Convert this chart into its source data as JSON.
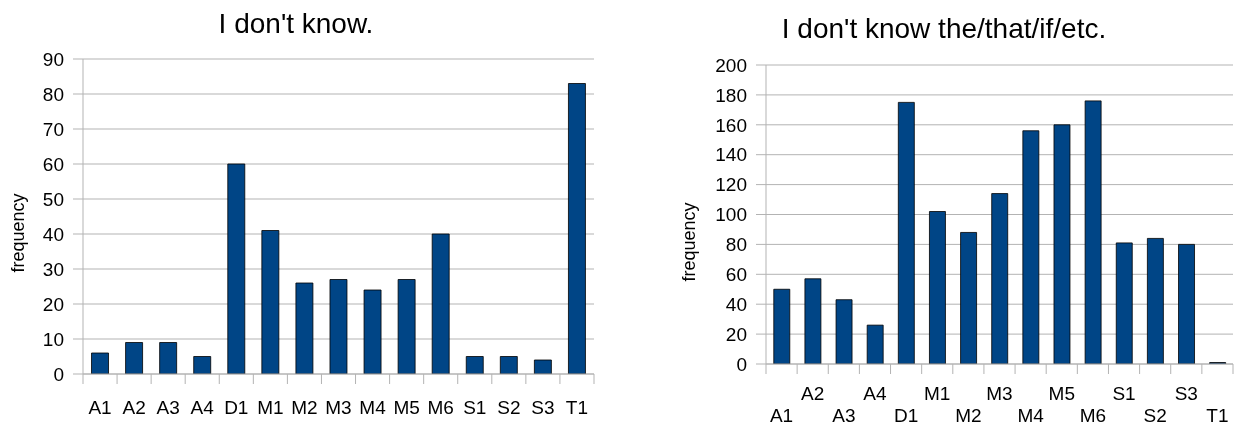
{
  "chart_data": [
    {
      "type": "bar",
      "title": "I don't know.",
      "ylabel": "frequency",
      "categories": [
        "A1",
        "A2",
        "A3",
        "A4",
        "D1",
        "M1",
        "M2",
        "M3",
        "M4",
        "M5",
        "M6",
        "S1",
        "S2",
        "S3",
        "T1"
      ],
      "values": [
        6,
        9,
        9,
        5,
        60,
        41,
        26,
        27,
        24,
        27,
        40,
        5,
        5,
        4,
        83
      ],
      "color": "#004586",
      "ylim": [
        0,
        90
      ],
      "yticks": [
        0,
        10,
        20,
        30,
        40,
        50,
        60,
        70,
        80,
        90
      ],
      "grid": "y"
    },
    {
      "type": "bar",
      "title": "I don't know the/that/if/etc.",
      "ylabel": "frequency",
      "categories": [
        "A1",
        "A2",
        "A3",
        "A4",
        "D1",
        "M1",
        "M2",
        "M3",
        "M4",
        "M5",
        "M6",
        "S1",
        "S2",
        "S3",
        "T1"
      ],
      "values": [
        50,
        57,
        43,
        26,
        175,
        102,
        88,
        114,
        156,
        160,
        176,
        81,
        84,
        80,
        1
      ],
      "color": "#004586",
      "ylim": [
        0,
        200
      ],
      "yticks": [
        0,
        20,
        40,
        60,
        80,
        100,
        120,
        140,
        160,
        180,
        200
      ],
      "grid": "y"
    }
  ]
}
